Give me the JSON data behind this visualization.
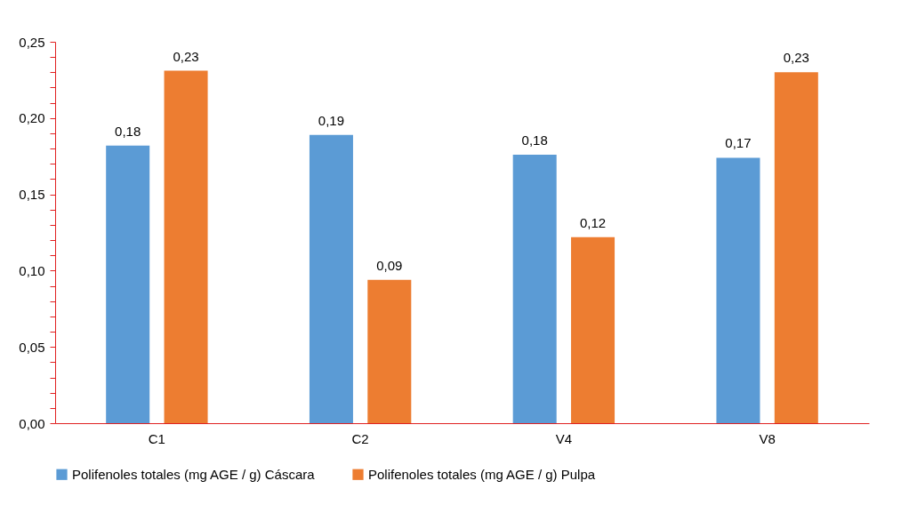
{
  "chart_data": {
    "type": "bar",
    "categories": [
      "C1",
      "C2",
      "V4",
      "V8"
    ],
    "series": [
      {
        "name": "Polifenoles totales (mg AGE / g) Cáscara",
        "color": "#5b9bd5",
        "values": [
          0.182,
          0.189,
          0.176,
          0.174
        ],
        "value_labels": [
          "0,18",
          "0,19",
          "0,18",
          "0,17"
        ]
      },
      {
        "name": "Polifenoles totales (mg AGE / g) Pulpa",
        "color": "#ed7d31",
        "values": [
          0.231,
          0.094,
          0.122,
          0.23
        ],
        "value_labels": [
          "0,23",
          "0,09",
          "0,12",
          "0,23"
        ]
      }
    ],
    "ylim": [
      0,
      0.25
    ],
    "yticks": [
      {
        "value": 0,
        "label": "0,00"
      },
      {
        "value": 0.01,
        "label": null
      },
      {
        "value": 0.02,
        "label": null
      },
      {
        "value": 0.03,
        "label": null
      },
      {
        "value": 0.04,
        "label": null
      },
      {
        "value": 0.05,
        "label": "0,05"
      },
      {
        "value": 0.06,
        "label": null
      },
      {
        "value": 0.07,
        "label": null
      },
      {
        "value": 0.08,
        "label": null
      },
      {
        "value": 0.09,
        "label": null
      },
      {
        "value": 0.1,
        "label": "0,10"
      },
      {
        "value": 0.11,
        "label": null
      },
      {
        "value": 0.12,
        "label": null
      },
      {
        "value": 0.13,
        "label": null
      },
      {
        "value": 0.14,
        "label": null
      },
      {
        "value": 0.15,
        "label": "0,15"
      },
      {
        "value": 0.16,
        "label": null
      },
      {
        "value": 0.17,
        "label": null
      },
      {
        "value": 0.18,
        "label": null
      },
      {
        "value": 0.19,
        "label": null
      },
      {
        "value": 0.2,
        "label": "0,20"
      },
      {
        "value": 0.21,
        "label": null
      },
      {
        "value": 0.22,
        "label": null
      },
      {
        "value": 0.23,
        "label": null
      },
      {
        "value": 0.24,
        "label": null
      },
      {
        "value": 0.25,
        "label": "0,25"
      }
    ],
    "grid": false,
    "legend": "bottom"
  }
}
